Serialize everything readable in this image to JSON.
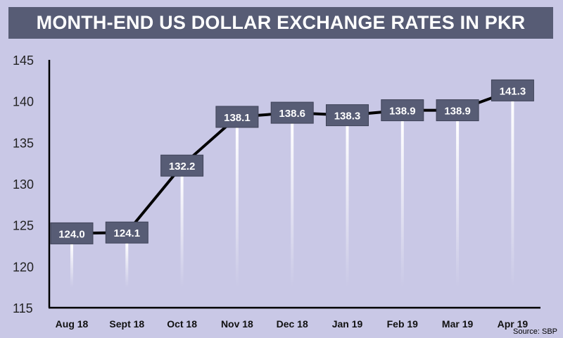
{
  "header": {
    "title": "MONTH-END US DOLLAR EXCHANGE RATES IN PKR"
  },
  "footer": {
    "source": "Source: SBP"
  },
  "chart_data": {
    "type": "line",
    "title": "MONTH-END US DOLLAR EXCHANGE RATES IN PKR",
    "xlabel": "",
    "ylabel": "",
    "categories": [
      "Aug 18",
      "Sept 18",
      "Oct 18",
      "Nov 18",
      "Dec 18",
      "Jan 19",
      "Feb 19",
      "Mar 19",
      "Apr 19"
    ],
    "values": [
      124.0,
      124.1,
      132.2,
      138.1,
      138.6,
      138.3,
      138.9,
      138.9,
      141.3
    ],
    "data_labels": [
      "124.0",
      "124.1",
      "132.2",
      "138.1",
      "138.6",
      "138.3",
      "138.9",
      "138.9",
      "141.3"
    ],
    "yticks": [
      115,
      120,
      125,
      130,
      135,
      140,
      145
    ],
    "ylim": [
      115,
      145
    ],
    "grid": false,
    "legend": "none",
    "colors": {
      "background": "#c9c8e6",
      "banner": "#575c75",
      "label_box": "#575c75",
      "line": "#000000",
      "axis": "#000000"
    }
  }
}
